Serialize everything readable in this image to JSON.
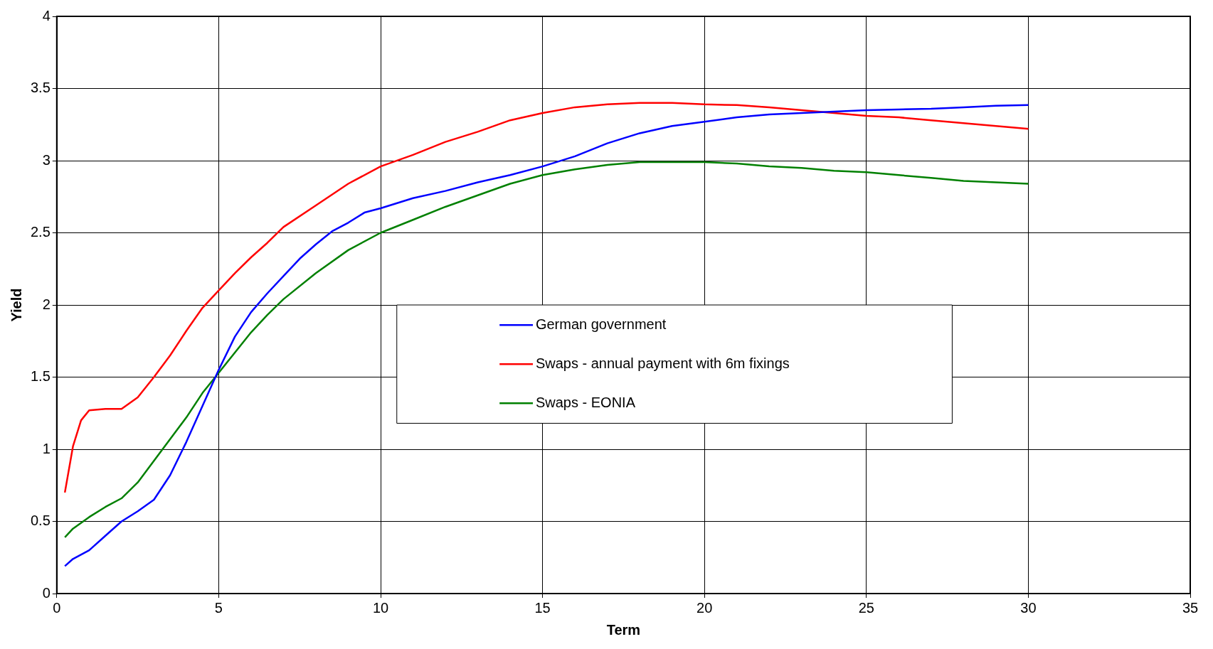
{
  "chart_data": {
    "type": "line",
    "xlabel": "Term",
    "ylabel": "Yield",
    "xlim": [
      0,
      35
    ],
    "xticks": [
      0,
      5,
      10,
      15,
      20,
      25,
      30,
      35
    ],
    "ylim": [
      0,
      4
    ],
    "yticks": [
      0,
      0.5,
      1,
      1.5,
      2,
      2.5,
      3,
      3.5,
      4
    ],
    "grid": true,
    "legend": "center",
    "marker": "none",
    "line_style": "solid",
    "series": [
      {
        "name": "German government",
        "color": "#0000ff",
        "x": [
          0.25,
          0.5,
          1,
          1.5,
          2,
          2.5,
          3,
          3.5,
          4,
          4.5,
          5,
          5.5,
          6,
          6.5,
          7,
          7.5,
          8,
          8.5,
          9,
          9.5,
          10,
          11,
          12,
          13,
          14,
          15,
          16,
          17,
          18,
          19,
          20,
          21,
          22,
          23,
          24,
          25,
          26,
          27,
          28,
          29,
          30
        ],
        "values": [
          0.19,
          0.24,
          0.3,
          0.4,
          0.5,
          0.57,
          0.65,
          0.82,
          1.05,
          1.3,
          1.55,
          1.78,
          1.95,
          2.08,
          2.2,
          2.32,
          2.42,
          2.51,
          2.57,
          2.64,
          2.67,
          2.74,
          2.79,
          2.85,
          2.9,
          2.96,
          3.03,
          3.12,
          3.19,
          3.24,
          3.27,
          3.3,
          3.32,
          3.33,
          3.34,
          3.35,
          3.355,
          3.36,
          3.37,
          3.38,
          3.385
        ]
      },
      {
        "name": "Swaps - annual payment with 6m fixings",
        "color": "#ff0000",
        "x": [
          0.25,
          0.5,
          0.75,
          1,
          1.5,
          2,
          2.5,
          3,
          3.5,
          4,
          4.5,
          5,
          5.5,
          6,
          6.5,
          7,
          8,
          9,
          10,
          11,
          12,
          13,
          14,
          15,
          16,
          17,
          18,
          19,
          20,
          21,
          22,
          23,
          24,
          25,
          26,
          27,
          28,
          29,
          30
        ],
        "values": [
          0.7,
          1.02,
          1.2,
          1.27,
          1.28,
          1.28,
          1.36,
          1.5,
          1.65,
          1.82,
          1.98,
          2.1,
          2.22,
          2.33,
          2.43,
          2.54,
          2.69,
          2.84,
          2.96,
          3.04,
          3.13,
          3.2,
          3.28,
          3.33,
          3.37,
          3.39,
          3.4,
          3.4,
          3.39,
          3.385,
          3.37,
          3.35,
          3.33,
          3.31,
          3.3,
          3.28,
          3.26,
          3.24,
          3.22
        ]
      },
      {
        "name": "Swaps - EONIA",
        "color": "#008000",
        "x": [
          0.25,
          0.5,
          1,
          1.5,
          2,
          2.5,
          3,
          3.5,
          4,
          4.5,
          5,
          5.5,
          6,
          6.5,
          7,
          8,
          9,
          10,
          11,
          12,
          13,
          14,
          15,
          16,
          17,
          18,
          19,
          20,
          21,
          22,
          23,
          24,
          25,
          26,
          27,
          28,
          29,
          30
        ],
        "values": [
          0.39,
          0.45,
          0.53,
          0.6,
          0.66,
          0.77,
          0.92,
          1.07,
          1.22,
          1.39,
          1.53,
          1.67,
          1.81,
          1.93,
          2.04,
          2.22,
          2.38,
          2.5,
          2.59,
          2.68,
          2.76,
          2.84,
          2.9,
          2.94,
          2.97,
          2.99,
          2.99,
          2.99,
          2.98,
          2.96,
          2.95,
          2.93,
          2.92,
          2.9,
          2.88,
          2.86,
          2.85,
          2.84
        ]
      }
    ]
  }
}
